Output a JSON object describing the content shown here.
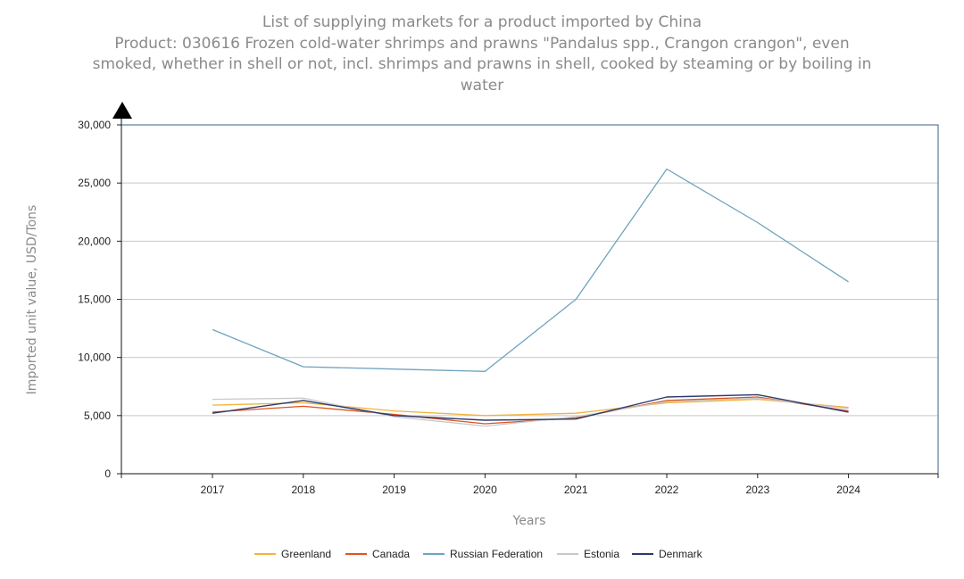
{
  "chart_data": {
    "type": "line",
    "title": "List of supplying markets for a product imported by China",
    "subtitle": [
      "Product: 030616 Frozen cold-water shrimps and prawns \"Pandalus spp., Crangon crangon\", even",
      "smoked, whether in shell or not, incl. shrimps and prawns in shell, cooked by steaming or by boiling in",
      "water"
    ],
    "xlabel": "Years",
    "ylabel": "Imported unit value, USD/Tons",
    "categories": [
      "2017",
      "2018",
      "2019",
      "2020",
      "2021",
      "2022",
      "2023",
      "2024"
    ],
    "ylim": [
      0,
      30000
    ],
    "yticks": [
      0,
      5000,
      10000,
      15000,
      20000,
      25000,
      30000
    ],
    "ytick_labels": [
      "0",
      "5,000",
      "10,000",
      "15,000",
      "20,000",
      "25,000",
      "30,000"
    ],
    "grid": true,
    "legend_position": "bottom",
    "series": [
      {
        "name": "Greenland",
        "color": "#f2b33d",
        "values": [
          5900,
          6100,
          5400,
          5000,
          5200,
          6100,
          6400,
          5700
        ]
      },
      {
        "name": "Canada",
        "color": "#e0531b",
        "values": [
          5300,
          5800,
          5100,
          4300,
          4800,
          6300,
          6600,
          5400
        ]
      },
      {
        "name": "Russian Federation",
        "color": "#6fa3be",
        "values": [
          12400,
          9200,
          9000,
          8800,
          15000,
          26200,
          21600,
          16500
        ]
      },
      {
        "name": "Estonia",
        "color": "#c8c8c8",
        "values": [
          6400,
          6500,
          4900,
          4100,
          4900,
          6200,
          6500,
          5600
        ]
      },
      {
        "name": "Denmark",
        "color": "#2b3a6b",
        "values": [
          5200,
          6300,
          5000,
          4600,
          4700,
          6600,
          6800,
          5300
        ]
      }
    ]
  }
}
